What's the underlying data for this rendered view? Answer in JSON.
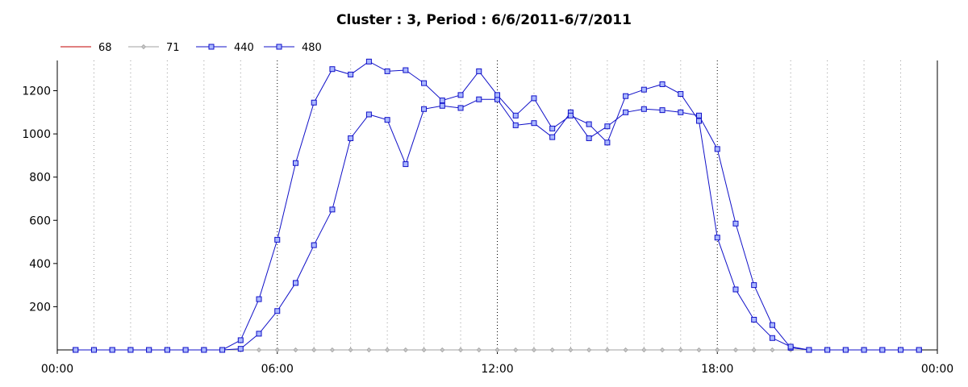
{
  "chart_data": {
    "type": "line",
    "title": "Cluster : 3, Period : 6/6/2011-6/7/2011",
    "xlabel": "",
    "ylabel": "",
    "x_ticks": [
      "00:00",
      "06:00",
      "12:00",
      "18:00",
      "00:00"
    ],
    "xlim_hours": [
      0,
      24
    ],
    "y_ticks": [
      200,
      400,
      600,
      800,
      1000,
      1200
    ],
    "ylim": [
      0,
      1340
    ],
    "grid": "vertical dotted",
    "legend_position": "top-left",
    "x_hours": [
      0.5,
      1,
      1.5,
      2,
      2.5,
      3,
      3.5,
      4,
      4.5,
      5,
      5.5,
      6,
      6.5,
      7,
      7.5,
      8,
      8.5,
      9,
      9.5,
      10,
      10.5,
      11,
      11.5,
      12,
      12.5,
      13,
      13.5,
      14,
      14.5,
      15,
      15.5,
      16,
      16.5,
      17,
      17.5,
      18,
      18.5,
      19,
      19.5,
      20,
      20.5,
      21,
      21.5,
      22,
      22.5,
      23,
      23.5
    ],
    "series": [
      {
        "name": "68",
        "color": "#c00000",
        "marker": "none",
        "values": [
          0,
          0,
          0,
          0,
          0,
          0,
          0,
          0,
          0,
          0,
          0,
          0,
          0,
          0,
          0,
          0,
          0,
          0,
          0,
          0,
          0,
          0,
          0,
          0,
          0,
          0,
          0,
          0,
          0,
          0,
          0,
          0,
          0,
          0,
          0,
          0,
          0,
          0,
          0,
          0,
          0,
          0,
          0,
          0,
          0,
          0,
          0
        ]
      },
      {
        "name": "71",
        "color": "#a0a0a0",
        "marker": "diamond",
        "values": [
          0,
          0,
          0,
          0,
          0,
          0,
          0,
          0,
          0,
          0,
          0,
          0,
          0,
          0,
          0,
          0,
          0,
          0,
          0,
          0,
          0,
          0,
          0,
          0,
          0,
          0,
          0,
          0,
          0,
          0,
          0,
          0,
          0,
          0,
          0,
          0,
          0,
          0,
          0,
          0,
          0,
          0,
          0,
          0,
          0,
          0,
          0
        ]
      },
      {
        "name": "440",
        "color": "#1010c8",
        "marker": "square",
        "values": [
          0,
          0,
          0,
          0,
          0,
          0,
          0,
          0,
          0,
          5,
          75,
          180,
          310,
          485,
          650,
          980,
          1090,
          1065,
          860,
          1115,
          1130,
          1120,
          1160,
          1160,
          1040,
          1050,
          985,
          1100,
          980,
          1035,
          1100,
          1115,
          1110,
          1100,
          1085,
          930,
          585,
          300,
          115,
          10,
          0,
          0,
          0,
          0,
          0,
          0,
          0
        ]
      },
      {
        "name": "480",
        "color": "#1010c8",
        "marker": "square",
        "values": [
          0,
          0,
          0,
          0,
          0,
          0,
          0,
          0,
          0,
          45,
          235,
          510,
          865,
          1145,
          1300,
          1275,
          1335,
          1290,
          1295,
          1235,
          1155,
          1180,
          1290,
          1180,
          1085,
          1165,
          1025,
          1085,
          1045,
          960,
          1175,
          1205,
          1230,
          1185,
          1060,
          520,
          280,
          140,
          55,
          15,
          0,
          0,
          0,
          0,
          0,
          0,
          0
        ]
      }
    ]
  }
}
